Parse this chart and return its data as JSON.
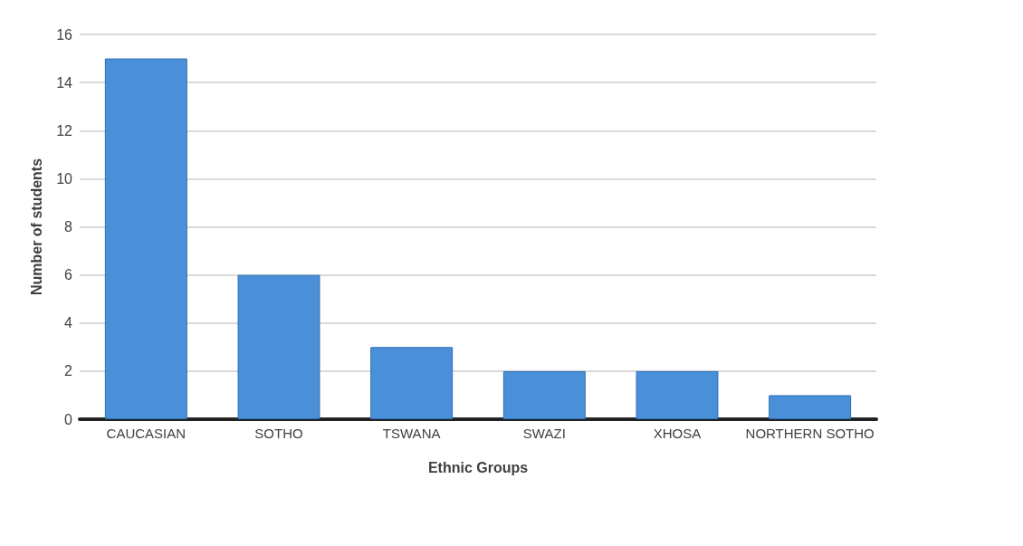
{
  "chart_data": {
    "type": "bar",
    "xlabel": "Ethnic Groups",
    "ylabel": "Number of students",
    "categories": [
      "CAUCASIAN",
      "SOTHO",
      "TSWANA",
      "SWAZI",
      "XHOSA",
      "NORTHERN SOTHO"
    ],
    "values": [
      15,
      6,
      3,
      2,
      2,
      1
    ],
    "color": "#4a90d9",
    "ylim": [
      0,
      16
    ],
    "yticks": [
      0,
      2,
      4,
      6,
      8,
      10,
      12,
      14,
      16
    ],
    "grid": "y"
  }
}
